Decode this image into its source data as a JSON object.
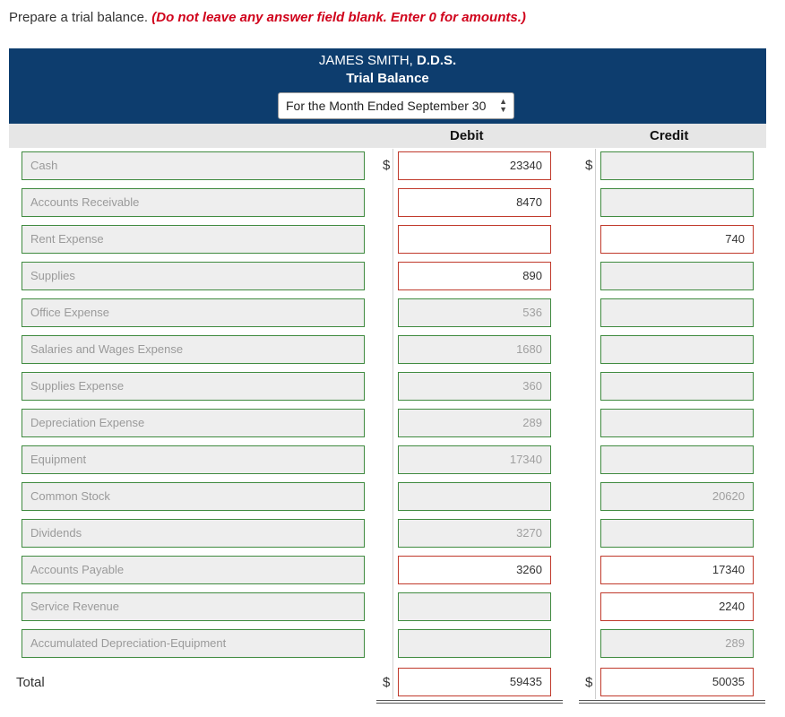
{
  "instructions": {
    "lead": "Prepare a trial balance. ",
    "warning": "(Do not leave any answer field blank. Enter 0 for amounts.)"
  },
  "header": {
    "company_name": "JAMES SMITH,",
    "company_suffix": " D.D.S.",
    "report_title": "Trial Balance",
    "period": "For the Month Ended September 30"
  },
  "columns": {
    "debit": "Debit",
    "credit": "Credit"
  },
  "currency_symbol": "$",
  "rows": [
    {
      "account": "Cash",
      "debit": "23340",
      "credit": ""
    },
    {
      "account": "Accounts Receivable",
      "debit": "8470",
      "credit": ""
    },
    {
      "account": "Rent Expense",
      "debit": "",
      "credit": "740"
    },
    {
      "account": "Supplies",
      "debit": "890",
      "credit": ""
    },
    {
      "account": "Office Expense",
      "debit": "536",
      "credit": ""
    },
    {
      "account": "Salaries and Wages Expense",
      "debit": "1680",
      "credit": ""
    },
    {
      "account": "Supplies Expense",
      "debit": "360",
      "credit": ""
    },
    {
      "account": "Depreciation Expense",
      "debit": "289",
      "credit": ""
    },
    {
      "account": "Equipment",
      "debit": "17340",
      "credit": ""
    },
    {
      "account": "Common Stock",
      "debit": "",
      "credit": "20620"
    },
    {
      "account": "Dividends",
      "debit": "3270",
      "credit": ""
    },
    {
      "account": "Accounts Payable",
      "debit": "3260",
      "credit": "17340"
    },
    {
      "account": "Service Revenue",
      "debit": "",
      "credit": "2240"
    },
    {
      "account": "Accumulated Depreciation-Equipment",
      "debit": "",
      "credit": "289"
    }
  ],
  "total": {
    "label": "Total",
    "debit": "59435",
    "credit": "50035"
  }
}
